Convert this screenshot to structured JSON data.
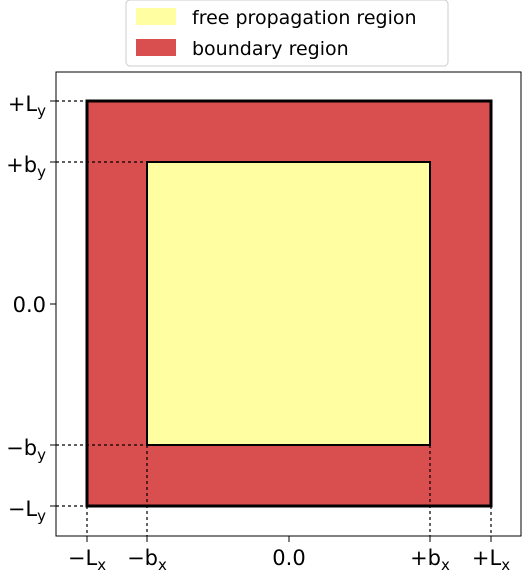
{
  "colors": {
    "free_region": "#ffffa2",
    "boundary_region": "#d94f4f",
    "outline": "#000000",
    "legend_border": "#cccccc"
  },
  "legend": {
    "items": [
      {
        "label": "free propagation region",
        "color": "#ffffa2"
      },
      {
        "label": "boundary region",
        "color": "#d94f4f"
      }
    ]
  },
  "axes": {
    "x_ticks": [
      {
        "base": "−L",
        "sub": "x"
      },
      {
        "base": "−b",
        "sub": "x"
      },
      {
        "base": "0.0",
        "sub": ""
      },
      {
        "base": "+b",
        "sub": "x"
      },
      {
        "base": "+L",
        "sub": "x"
      }
    ],
    "y_ticks": [
      {
        "base": "+L",
        "sub": "y"
      },
      {
        "base": "+b",
        "sub": "y"
      },
      {
        "base": "0.0",
        "sub": ""
      },
      {
        "base": "−b",
        "sub": "y"
      },
      {
        "base": "−L",
        "sub": "y"
      }
    ]
  }
}
